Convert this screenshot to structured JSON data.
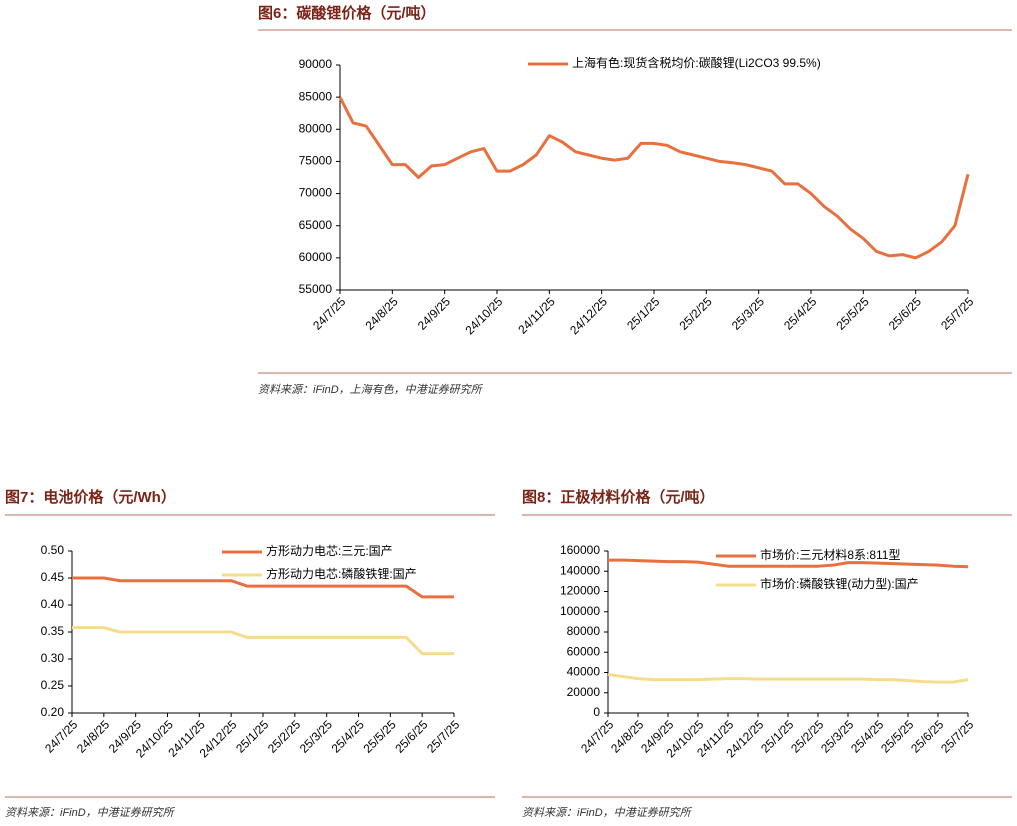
{
  "chart_data": [
    {
      "type": "line",
      "title": "图6：碳酸锂价格（元/吨）",
      "source": "资料来源：iFinD，上海有色，中港证券研究所",
      "categories": [
        "24/7/25",
        null,
        null,
        null,
        "24/8/25",
        null,
        null,
        null,
        "24/9/25",
        null,
        null,
        null,
        "24/10/25",
        null,
        null,
        null,
        "24/11/25",
        null,
        null,
        null,
        "24/12/25",
        null,
        null,
        null,
        "25/1/25",
        null,
        null,
        null,
        "25/2/25",
        null,
        null,
        null,
        "25/3/25",
        null,
        null,
        null,
        "25/4/25",
        null,
        null,
        null,
        "25/5/25",
        null,
        null,
        null,
        "25/6/25",
        null,
        null,
        null,
        "25/7/25"
      ],
      "series": [
        {
          "name": "上海有色:现货含税均价:碳酸锂(Li2CO3 99.5%)",
          "color": "#E8703F",
          "values": [
            85000,
            81000,
            80500,
            77500,
            74500,
            74500,
            72500,
            74300,
            74500,
            75500,
            76500,
            77000,
            73500,
            73500,
            74500,
            76000,
            79000,
            78000,
            76500,
            76000,
            75500,
            75200,
            75500,
            77800,
            77800,
            77500,
            76500,
            76000,
            75500,
            75000,
            74800,
            74500,
            74000,
            73500,
            71500,
            71500,
            70000,
            68000,
            66500,
            64500,
            63000,
            61000,
            60300,
            60500,
            60000,
            61000,
            62500,
            65000,
            73000
          ]
        }
      ],
      "ylim": [
        55000,
        90000
      ],
      "yticks": [
        55000,
        60000,
        65000,
        70000,
        75000,
        80000,
        85000,
        90000
      ],
      "legend": "top"
    },
    {
      "type": "line",
      "title": "图7：电池价格（元/Wh）",
      "source": "资料来源：iFinD，中港证券研究所",
      "categories": [
        "24/7/25",
        null,
        "24/8/25",
        null,
        "24/9/25",
        null,
        "24/10/25",
        null,
        "24/11/25",
        null,
        "24/12/25",
        null,
        "25/1/25",
        null,
        "25/2/25",
        null,
        "25/3/25",
        null,
        "25/4/25",
        null,
        "25/5/25",
        null,
        "25/6/25",
        null,
        "25/7/25"
      ],
      "series": [
        {
          "name": "方形动力电芯:三元:国产",
          "color": "#E8703F",
          "values": [
            0.45,
            0.45,
            0.45,
            0.445,
            0.445,
            0.445,
            0.445,
            0.445,
            0.445,
            0.445,
            0.445,
            0.435,
            0.435,
            0.435,
            0.435,
            0.435,
            0.435,
            0.435,
            0.435,
            0.435,
            0.435,
            0.435,
            0.415,
            0.415,
            0.415
          ]
        },
        {
          "name": "方形动力电芯:磷酸铁锂:国产",
          "color": "#F5DC8C",
          "values": [
            0.358,
            0.358,
            0.358,
            0.35,
            0.35,
            0.35,
            0.35,
            0.35,
            0.35,
            0.35,
            0.35,
            0.34,
            0.34,
            0.34,
            0.34,
            0.34,
            0.34,
            0.34,
            0.34,
            0.34,
            0.34,
            0.34,
            0.31,
            0.31,
            0.31
          ]
        }
      ],
      "ylim": [
        0.2,
        0.5
      ],
      "yticks": [
        {
          "value": 0.2,
          "label": "0.20"
        },
        {
          "value": 0.25,
          "label": "0.25"
        },
        {
          "value": 0.3,
          "label": "0.30"
        },
        {
          "value": 0.35,
          "label": "0.35"
        },
        {
          "value": 0.4,
          "label": "0.40"
        },
        {
          "value": 0.45,
          "label": "0.45"
        },
        {
          "value": 0.5,
          "label": "0.50"
        }
      ],
      "legend": "top"
    },
    {
      "type": "line",
      "title": "图8：正极材料价格（元/吨）",
      "source": "资料来源：iFinD，中港证券研究所",
      "categories": [
        "24/7/25",
        null,
        "24/8/25",
        null,
        "24/9/25",
        null,
        "24/10/25",
        null,
        "24/11/25",
        null,
        "24/12/25",
        null,
        "25/1/25",
        null,
        "25/2/25",
        null,
        "25/3/25",
        null,
        "25/4/25",
        null,
        "25/5/25",
        null,
        "25/6/25",
        null,
        "25/7/25"
      ],
      "series": [
        {
          "name": "市场价:三元材料8系:811型",
          "color": "#E8703F",
          "values": [
            151000,
            151000,
            150500,
            150000,
            149500,
            149500,
            149000,
            147000,
            145000,
            145000,
            145000,
            145000,
            145000,
            145000,
            145000,
            146000,
            148500,
            148500,
            148000,
            147500,
            147000,
            146500,
            146000,
            145000,
            144500
          ]
        },
        {
          "name": "市场价:磷酸铁锂(动力型):国产",
          "color": "#F5DC8C",
          "values": [
            38000,
            36000,
            34000,
            33000,
            33000,
            33000,
            33000,
            33500,
            34000,
            34000,
            33500,
            33500,
            33500,
            33500,
            33500,
            33500,
            33500,
            33500,
            33000,
            33000,
            32000,
            31000,
            30500,
            30500,
            33000
          ]
        }
      ],
      "ylim": [
        0,
        160000
      ],
      "yticks": [
        0,
        20000,
        40000,
        60000,
        80000,
        100000,
        120000,
        140000,
        160000
      ],
      "legend": "top"
    }
  ]
}
